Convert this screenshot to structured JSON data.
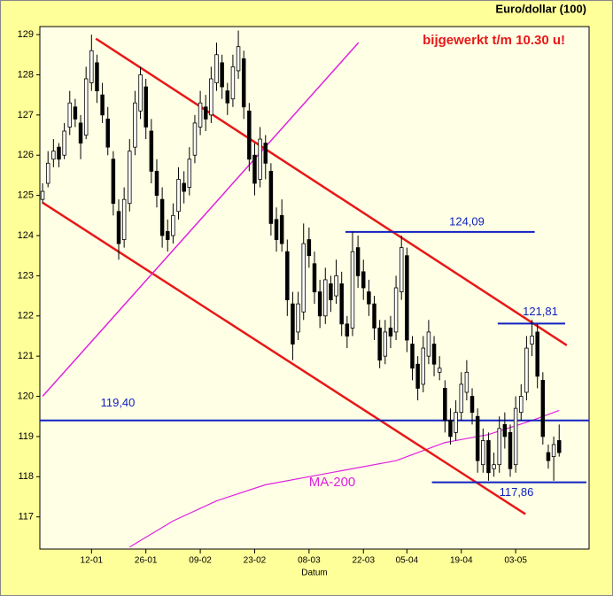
{
  "chart_data": {
    "type": "candlestick",
    "title": "Euro/dollar (100)",
    "annotation": "bijgewerkt t/m 10.30 u!",
    "x_label": "Datum",
    "categories": [
      null,
      null,
      null,
      null,
      null,
      null,
      null,
      null,
      null,
      "12-01",
      null,
      null,
      null,
      null,
      null,
      null,
      null,
      null,
      null,
      "26-01",
      null,
      null,
      null,
      null,
      null,
      null,
      null,
      null,
      null,
      "09-02",
      null,
      null,
      null,
      null,
      null,
      null,
      null,
      null,
      null,
      "23-02",
      null,
      null,
      null,
      null,
      null,
      null,
      null,
      null,
      null,
      "08-03",
      null,
      null,
      null,
      null,
      null,
      null,
      null,
      null,
      null,
      "22-03",
      null,
      null,
      null,
      null,
      null,
      null,
      null,
      "05-04",
      null,
      null,
      null,
      null,
      null,
      null,
      null,
      null,
      null,
      "19-04",
      null,
      null,
      null,
      null,
      null,
      null,
      null,
      null,
      null,
      "03-05",
      null,
      null,
      null,
      null,
      null,
      null,
      null,
      null,
      null,
      null,
      null,
      null,
      null
    ],
    "open": [
      124.9,
      125.3,
      125.9,
      126.2,
      126.0,
      126.7,
      127.2,
      126.8,
      126.5,
      127.8,
      128.3,
      127.5,
      126.9,
      125.9,
      124.6,
      123.9,
      124.8,
      126.2,
      127.1,
      127.7,
      126.6,
      125.6,
      124.9,
      124.1,
      124.0,
      124.6,
      125.3,
      125.2,
      126.0,
      126.7,
      127.2,
      127.0,
      127.8,
      128.3,
      127.6,
      127.4,
      128.1,
      128.4,
      127.1,
      126.0,
      125.4,
      126.3,
      125.6,
      124.4,
      124.5,
      123.6,
      122.3,
      121.6,
      122.1,
      123.9,
      123.3,
      122.6,
      122.0,
      122.8,
      122.5,
      122.8,
      121.8,
      121.7,
      123.7,
      123.1,
      122.6,
      122.3,
      121.7,
      121.0,
      121.7,
      121.6,
      122.6,
      123.5,
      121.3,
      120.8,
      120.3,
      121.0,
      121.3,
      120.6,
      120.2,
      119.4,
      119.1,
      119.6,
      120.1,
      120.0,
      119.5,
      118.3,
      118.9,
      118.2,
      118.3,
      119.3,
      119.1,
      118.3,
      119.6,
      120.1,
      121.3,
      121.6,
      120.4,
      118.6,
      118.5,
      118.9,
      null,
      null,
      null,
      null,
      null
    ],
    "high": [
      125.3,
      126.1,
      126.4,
      126.3,
      126.8,
      127.6,
      127.4,
      127.0,
      128.2,
      129.0,
      128.5,
      127.8,
      127.2,
      126.1,
      124.9,
      125.2,
      126.4,
      127.6,
      128.2,
      127.9,
      126.9,
      125.9,
      125.2,
      124.4,
      124.8,
      125.7,
      125.6,
      126.2,
      127.0,
      127.6,
      127.5,
      128.2,
      128.8,
      128.5,
      127.8,
      128.5,
      129.1,
      128.6,
      127.3,
      126.3,
      126.7,
      126.5,
      125.8,
      124.7,
      124.9,
      123.9,
      122.6,
      122.6,
      124.3,
      124.2,
      123.6,
      122.9,
      123.2,
      123.0,
      123.4,
      123.1,
      122.0,
      124.1,
      124.0,
      123.4,
      122.9,
      122.5,
      121.9,
      121.9,
      122.0,
      123.0,
      124.0,
      123.7,
      121.5,
      121.0,
      121.5,
      121.9,
      121.5,
      121.0,
      120.4,
      119.7,
      119.9,
      120.6,
      120.9,
      120.2,
      119.7,
      119.2,
      119.1,
      118.6,
      119.5,
      119.6,
      119.3,
      120.0,
      120.3,
      121.5,
      121.9,
      121.8,
      120.6,
      118.8,
      119.0,
      119.3,
      null,
      null,
      null,
      null,
      null
    ],
    "low": [
      124.8,
      125.2,
      125.7,
      125.7,
      125.9,
      126.5,
      126.7,
      125.9,
      126.4,
      127.6,
      127.3,
      126.8,
      126.0,
      124.5,
      123.4,
      123.7,
      124.6,
      126.0,
      126.9,
      126.4,
      125.3,
      124.7,
      123.7,
      123.6,
      123.8,
      124.4,
      124.8,
      125.0,
      125.8,
      126.5,
      126.6,
      126.8,
      127.6,
      127.4,
      127.0,
      127.2,
      127.9,
      126.9,
      125.6,
      125.0,
      125.2,
      125.4,
      124.0,
      123.6,
      123.6,
      122.0,
      120.9,
      121.4,
      121.9,
      123.2,
      122.3,
      121.7,
      121.8,
      122.1,
      122.3,
      121.5,
      121.2,
      121.5,
      122.7,
      122.4,
      122.0,
      121.4,
      120.7,
      120.8,
      121.2,
      121.4,
      122.4,
      121.1,
      120.4,
      119.9,
      120.1,
      120.8,
      120.5,
      120.4,
      119.1,
      118.8,
      118.9,
      119.4,
      119.9,
      119.3,
      118.1,
      118.1,
      117.9,
      118.0,
      118.1,
      118.7,
      118.0,
      118.1,
      119.4,
      119.9,
      121.0,
      120.2,
      118.8,
      118.2,
      117.9,
      118.5,
      null,
      null,
      null,
      null,
      null
    ],
    "close": [
      125.1,
      125.8,
      126.1,
      125.9,
      126.6,
      127.3,
      126.9,
      126.3,
      127.9,
      128.6,
      127.6,
      127.0,
      126.2,
      124.8,
      123.8,
      124.9,
      126.1,
      127.3,
      128.0,
      126.7,
      125.6,
      125.0,
      124.0,
      123.9,
      124.5,
      125.4,
      125.1,
      125.9,
      126.8,
      127.3,
      126.9,
      127.9,
      128.5,
      127.7,
      127.3,
      128.2,
      128.7,
      127.2,
      125.9,
      125.3,
      126.4,
      125.8,
      124.3,
      123.9,
      123.8,
      122.4,
      121.3,
      122.3,
      123.8,
      123.5,
      122.6,
      122.0,
      122.9,
      122.4,
      123.0,
      121.8,
      121.5,
      123.6,
      123.0,
      122.7,
      122.3,
      121.7,
      120.9,
      121.6,
      121.5,
      122.7,
      123.7,
      121.4,
      120.7,
      120.2,
      121.2,
      121.6,
      120.8,
      120.7,
      119.4,
      119.0,
      119.6,
      120.3,
      120.6,
      119.6,
      118.4,
      118.9,
      118.1,
      118.3,
      119.2,
      119.0,
      118.2,
      119.7,
      120.0,
      121.2,
      121.5,
      120.5,
      119.0,
      118.4,
      118.8,
      118.6,
      null,
      null,
      null,
      null,
      null
    ],
    "ylim": [
      116.2,
      129.2
    ],
    "yticks": [
      117,
      118,
      119,
      120,
      121,
      122,
      123,
      124,
      125,
      126,
      127,
      128,
      129
    ],
    "trend_lines": [
      {
        "color": "#e81818",
        "points": [
          [
            9.8,
            128.9
          ],
          [
            96.4,
            121.27
          ]
        ]
      },
      {
        "color": "#e81818",
        "points": [
          [
            0,
            124.82
          ],
          [
            88.8,
            117.07
          ]
        ]
      },
      {
        "color": "#e020e0",
        "points": [
          [
            0,
            120.0
          ],
          [
            58.1,
            128.8
          ]
        ]
      }
    ],
    "levels": [
      {
        "value": 124.09,
        "value_label": "124,09",
        "from": 55.7,
        "to": 90.5
      },
      {
        "value": 121.81,
        "value_label": "121,81",
        "from": 83.7,
        "to": 96.1
      },
      {
        "value": 119.4,
        "value_label": "119,40",
        "from": -0.5,
        "to": 100.5
      },
      {
        "value": 117.86,
        "value_label": "117,86",
        "from": 71.6,
        "to": 100.0
      }
    ],
    "level_color": "#1020c0",
    "moving_average": {
      "name": "MA-200",
      "color": "#e020e0",
      "x": [
        16,
        24,
        32,
        41,
        49,
        57,
        65,
        74,
        82,
        90,
        95
      ],
      "values": [
        116.25,
        116.9,
        117.4,
        117.8,
        118.0,
        118.2,
        118.4,
        118.85,
        119.05,
        119.4,
        119.65
      ]
    }
  }
}
